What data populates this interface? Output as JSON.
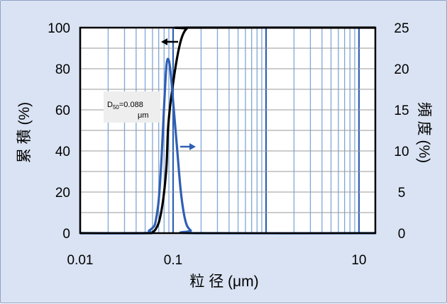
{
  "chart_data": {
    "type": "line",
    "xscale": "log",
    "xlim": [
      0.01,
      15
    ],
    "xlabel": "粒 径 (μm)",
    "ylabel_left": "累 積 (%)",
    "ylabel_right": "頻 度 (%)",
    "ylim_left": [
      0,
      100
    ],
    "ylim_right": [
      0,
      25
    ],
    "xticks": [
      {
        "value": 0.01,
        "label": "0.01"
      },
      {
        "value": 0.1,
        "label": "0.1"
      },
      {
        "value": 10,
        "label": "10"
      }
    ],
    "yticks_left": [
      {
        "value": 0,
        "label": "0"
      },
      {
        "value": 20,
        "label": "20"
      },
      {
        "value": 40,
        "label": "40"
      },
      {
        "value": 60,
        "label": "60"
      },
      {
        "value": 80,
        "label": "80"
      },
      {
        "value": 100,
        "label": "100"
      }
    ],
    "yticks_right": [
      {
        "value": 0,
        "label": "0"
      },
      {
        "value": 5,
        "label": "5"
      },
      {
        "value": 10,
        "label": "10"
      },
      {
        "value": 15,
        "label": "15"
      },
      {
        "value": 20,
        "label": "20"
      },
      {
        "value": 25,
        "label": "25"
      }
    ],
    "grid": true,
    "series": [
      {
        "axis": "left",
        "color": "#000000",
        "points": [
          [
            0.01,
            0
          ],
          [
            0.05,
            0
          ],
          [
            0.06,
            0.5
          ],
          [
            0.065,
            2
          ],
          [
            0.07,
            5
          ],
          [
            0.075,
            11
          ],
          [
            0.08,
            20
          ],
          [
            0.085,
            33
          ],
          [
            0.088,
            50
          ],
          [
            0.092,
            60
          ],
          [
            0.1,
            73
          ],
          [
            0.11,
            85
          ],
          [
            0.12,
            93
          ],
          [
            0.13,
            97.5
          ],
          [
            0.14,
            99.5
          ],
          [
            0.15,
            100
          ],
          [
            15,
            100
          ]
        ]
      },
      {
        "axis": "right",
        "color": "#2f5fb3",
        "points": [
          [
            0.01,
            0
          ],
          [
            0.05,
            0
          ],
          [
            0.055,
            0.3
          ],
          [
            0.062,
            0.8
          ],
          [
            0.065,
            1.5
          ],
          [
            0.07,
            4
          ],
          [
            0.075,
            9
          ],
          [
            0.08,
            15.5
          ],
          [
            0.085,
            20.5
          ],
          [
            0.09,
            21
          ],
          [
            0.095,
            19
          ],
          [
            0.1,
            16
          ],
          [
            0.11,
            10.5
          ],
          [
            0.12,
            5.5
          ],
          [
            0.13,
            2.5
          ],
          [
            0.14,
            1
          ],
          [
            0.155,
            0.3
          ],
          [
            0.17,
            0
          ],
          [
            15,
            0
          ]
        ]
      }
    ],
    "annotation": {
      "main": "D",
      "sub": "50",
      "value": "=0.088",
      "unit": "μm"
    },
    "arrows": [
      {
        "direction": "left",
        "color": "#000000"
      },
      {
        "direction": "right",
        "color": "#2f5fb3"
      }
    ]
  }
}
